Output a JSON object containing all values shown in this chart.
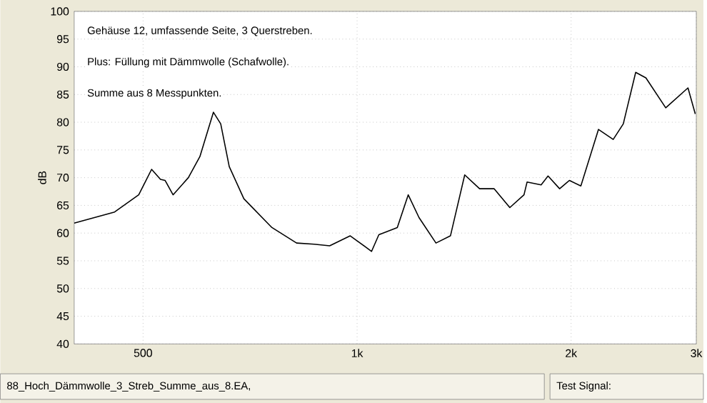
{
  "chart_data": {
    "type": "line",
    "ylabel": "dB",
    "annotations": [
      "Gehäuse 12, umfassende Seite, 3 Querstreben.",
      "Plus: Füllung mit Dämmwolle (Schafwolle).",
      "Summe aus 8 Messpunkten.",
      "88_Hoch_Dämmwolle_3_Streb_Summe_aus_8.EA,",
      "Test Signal:"
    ],
    "log": "x",
    "grid": true,
    "marker": "none",
    "line_style": "solid",
    "xlim": [
      400,
      3000
    ],
    "xticks": [
      {
        "value": 500,
        "label": "500"
      },
      {
        "value": 1000,
        "label": "1k"
      },
      {
        "value": 2000,
        "label": "2k"
      },
      {
        "value": 3000,
        "label": "3k"
      }
    ],
    "ylim": [
      40,
      100
    ],
    "yticks": [
      40,
      45,
      50,
      55,
      60,
      65,
      70,
      75,
      80,
      85,
      90,
      95,
      100
    ],
    "x": [
      400,
      456,
      493,
      514,
      529,
      537,
      551,
      579,
      601,
      628,
      643,
      661,
      693,
      759,
      822,
      870,
      915,
      978,
      1048,
      1073,
      1139,
      1180,
      1222,
      1291,
      1353,
      1417,
      1487,
      1559,
      1640,
      1717,
      1734,
      1815,
      1856,
      1927,
      1989,
      2064,
      2185,
      2292,
      2368,
      2465,
      2548,
      2717,
      2920,
      2990
    ],
    "series": [
      {
        "color": "#000000",
        "values": [
          61.8,
          63.8,
          66.9,
          71.5,
          69.7,
          69.5,
          66.9,
          70,
          73.8,
          81.8,
          79.7,
          72,
          66.2,
          61,
          58.2,
          58,
          57.7,
          59.5,
          56.7,
          59.7,
          61,
          66.9,
          62.8,
          58.2,
          59.5,
          70.5,
          68,
          68,
          64.6,
          66.9,
          69.2,
          68.7,
          70.3,
          68,
          69.5,
          68.5,
          78.7,
          76.9,
          79.7,
          89,
          88,
          82.6,
          86.2,
          81.5
        ]
      }
    ]
  }
}
